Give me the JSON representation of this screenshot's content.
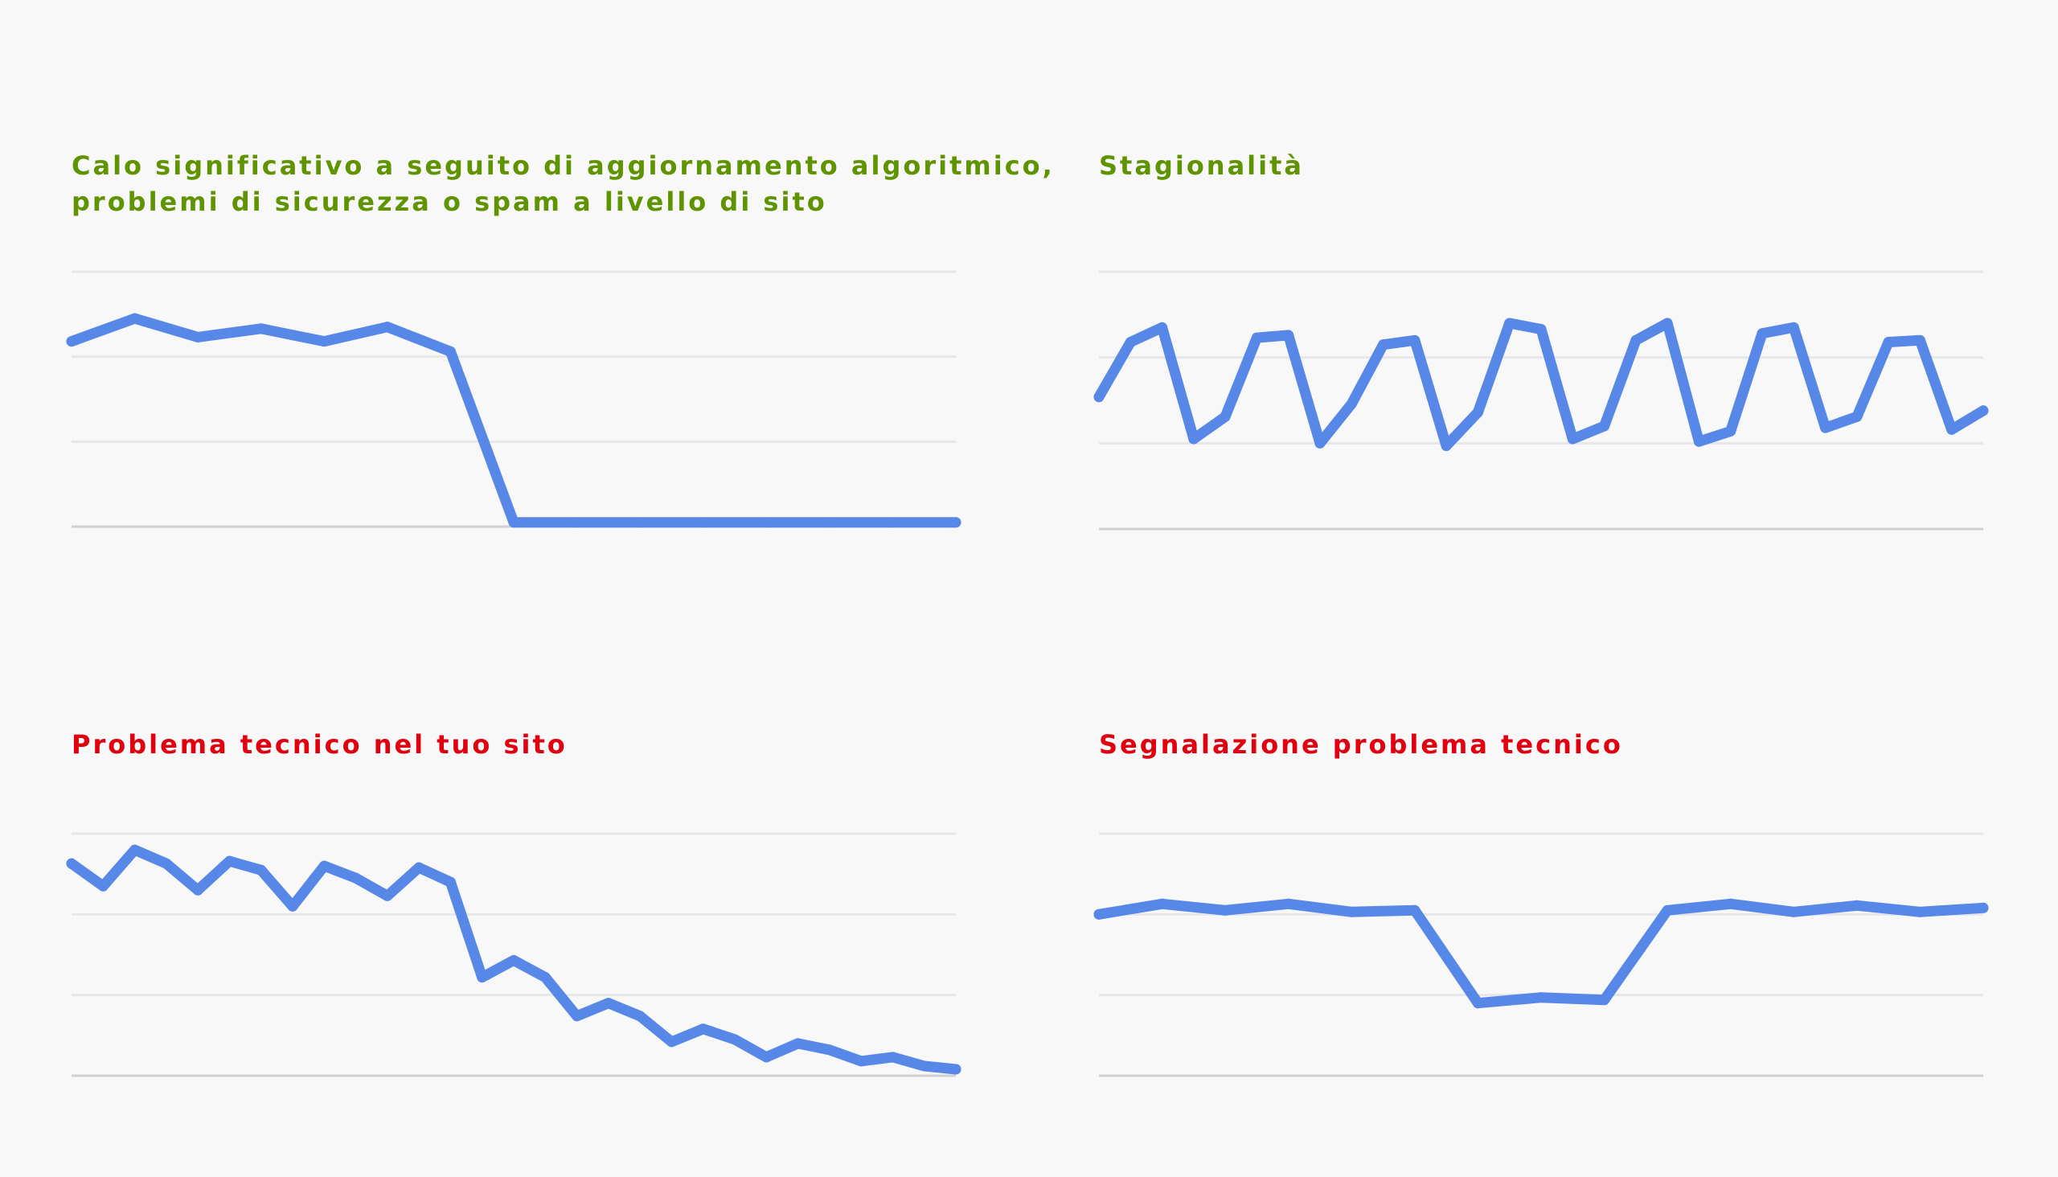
{
  "colors": {
    "background": "#f8f8f9",
    "line": "#5788e8",
    "grid": "#e7e7ea",
    "baseline": "#d0d0d4",
    "title_green": "#5f9400",
    "title_red": "#e0000f"
  },
  "chart_data": [
    {
      "type": "line",
      "title_lines": [
        "Calo significativo a seguito di aggiornamento algoritmico,",
        "problemi di sicurezza o spam a livello di sito"
      ],
      "title_color": "#5f9400",
      "xlabel": "",
      "ylabel": "",
      "grid": true,
      "gridlines": 4,
      "ylim": [
        0,
        3
      ],
      "x": [
        0,
        1,
        2,
        3,
        4,
        5,
        6,
        7,
        8,
        9,
        10,
        11,
        12,
        13,
        14
      ],
      "values": [
        2.18,
        2.45,
        2.23,
        2.33,
        2.18,
        2.35,
        2.06,
        0.05,
        0.05,
        0.05,
        0.05,
        0.05,
        0.05,
        0.05,
        0.05
      ]
    },
    {
      "type": "line",
      "title_lines": [
        "Stagionalità"
      ],
      "title_color": "#5f9400",
      "xlabel": "",
      "ylabel": "",
      "grid": true,
      "gridlines": 4,
      "ylim": [
        0,
        3
      ],
      "x": [
        0,
        1,
        2,
        3,
        4,
        5,
        6,
        7,
        8,
        9,
        10,
        11,
        12,
        13,
        14,
        15,
        16,
        17,
        18,
        19,
        20,
        21,
        22,
        23,
        24,
        25,
        26,
        27,
        28
      ],
      "values": [
        1.54,
        2.18,
        2.35,
        1.05,
        1.31,
        2.23,
        2.26,
        1.0,
        1.46,
        2.15,
        2.2,
        0.97,
        1.36,
        2.4,
        2.33,
        1.05,
        1.2,
        2.2,
        2.4,
        1.02,
        1.14,
        2.28,
        2.35,
        1.18,
        1.31,
        2.18,
        2.2,
        1.16,
        1.38
      ],
      "x_scale": 1
    },
    {
      "type": "line",
      "title_lines": [
        "Problema tecnico nel tuo sito"
      ],
      "title_color": "#e0000f",
      "xlabel": "",
      "ylabel": "",
      "grid": true,
      "gridlines": 4,
      "ylim": [
        0,
        3
      ],
      "x": [
        0,
        1,
        2,
        3,
        4,
        5,
        6,
        7,
        8,
        9,
        10,
        11,
        12,
        13,
        14,
        15,
        16,
        17,
        18,
        19,
        20,
        21,
        22,
        23,
        24,
        25,
        26,
        27,
        28
      ],
      "values": [
        2.63,
        2.35,
        2.8,
        2.63,
        2.3,
        2.66,
        2.55,
        2.1,
        2.6,
        2.45,
        2.23,
        2.58,
        2.4,
        1.22,
        1.43,
        1.22,
        0.74,
        0.9,
        0.74,
        0.42,
        0.58,
        0.45,
        0.23,
        0.4,
        0.32,
        0.18,
        0.23,
        0.12,
        0.08
      ]
    },
    {
      "type": "line",
      "title_lines": [
        "Segnalazione problema tecnico"
      ],
      "title_color": "#e0000f",
      "xlabel": "",
      "ylabel": "",
      "grid": true,
      "gridlines": 4,
      "ylim": [
        0,
        3
      ],
      "x": [
        0,
        1,
        2,
        3,
        4,
        5,
        6,
        7,
        8,
        9,
        10,
        11,
        12,
        13,
        14
      ],
      "values": [
        2.0,
        2.13,
        2.05,
        2.13,
        2.03,
        2.05,
        0.9,
        0.97,
        0.94,
        2.05,
        2.13,
        2.03,
        2.11,
        2.03,
        2.08
      ]
    }
  ]
}
